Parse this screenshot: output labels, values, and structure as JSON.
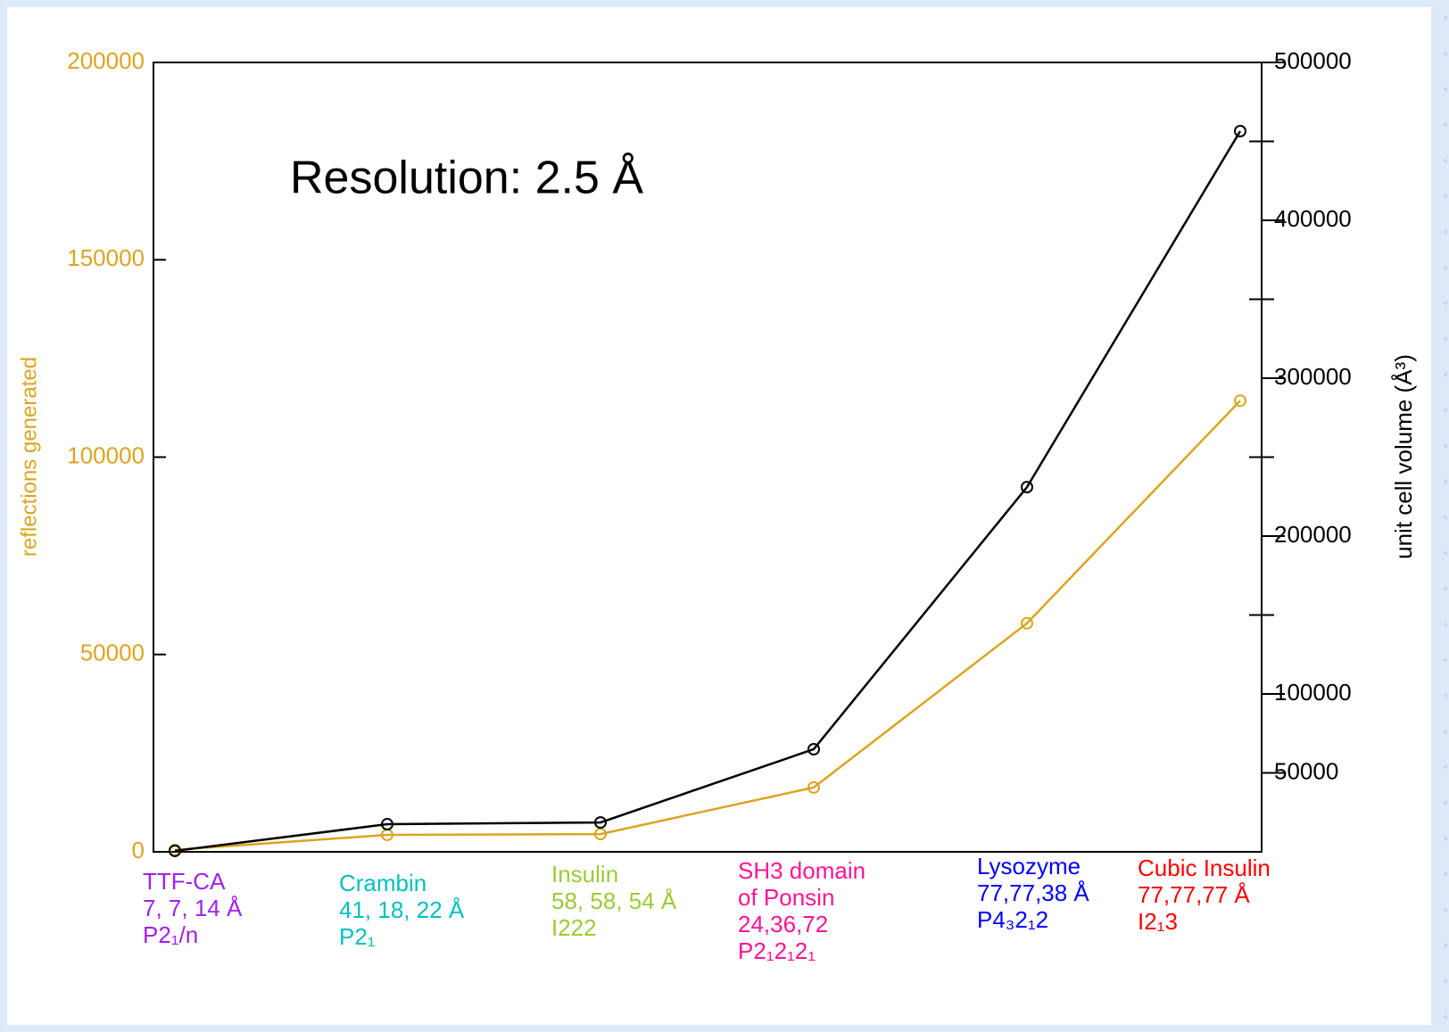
{
  "chart_data": {
    "type": "line",
    "annotation": "Resolution: 2.5 Å",
    "ylabel": "reflections generated",
    "y2label": "unit cell volume (Å³)",
    "categories": [
      [
        "TTF-CA",
        "7, 7, 14 Å",
        "P2₁/n"
      ],
      [
        "Crambin",
        "41, 18, 22 Å",
        "P2₁"
      ],
      [
        "Insulin",
        "58, 58, 54 Å",
        "I222"
      ],
      [
        "SH3 domain",
        "of Ponsin",
        "24,36,72",
        "P2₁2₁2₁"
      ],
      [
        "Lysozyme",
        "77,77,38 Å",
        "P4₃2₁2"
      ],
      [
        "Cubic Insulin",
        "77,77,77 Å",
        "I2₁3"
      ]
    ],
    "category_colors": [
      "#a020f0",
      "#00c0c0",
      "#99cc33",
      "#ff1493",
      "#0000ff",
      "#ff0000"
    ],
    "series": [
      {
        "color": "#daa520",
        "values": [
          500,
          4300,
          4500,
          16300,
          57900,
          114300
        ]
      },
      {
        "color": "#000000",
        "axis": "y2",
        "values": [
          600,
          17500,
          18600,
          65000,
          231000,
          456500
        ]
      }
    ],
    "ylim": [
      0,
      200000
    ],
    "yticks": [
      0,
      50000,
      100000,
      150000,
      200000
    ],
    "y2lim": [
      0,
      500000
    ],
    "y2ticks": [
      50000,
      100000,
      200000,
      300000,
      400000,
      500000
    ],
    "y2minor_ticks": [
      150000,
      250000,
      350000,
      450000
    ],
    "ycolor": "#daa520",
    "y2color": "#000000"
  }
}
